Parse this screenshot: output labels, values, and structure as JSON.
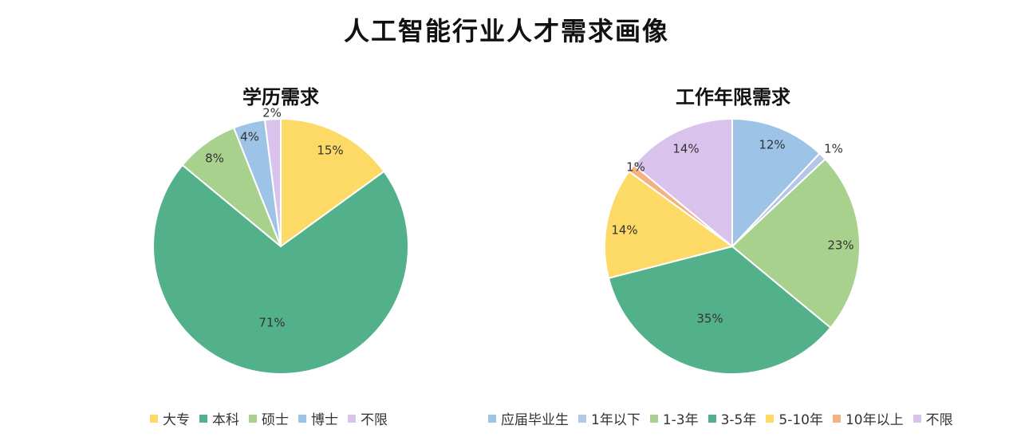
{
  "title": "人工智能行业人才需求画像",
  "chart_data": [
    {
      "type": "pie",
      "title": "学历需求",
      "slices": [
        {
          "label": "大专",
          "value": 15,
          "display": "15%",
          "color": "#FDD966"
        },
        {
          "label": "本科",
          "value": 71,
          "display": "71%",
          "color": "#52B18B"
        },
        {
          "label": "硕士",
          "value": 8,
          "display": "8%",
          "color": "#A9D18E"
        },
        {
          "label": "博士",
          "value": 4,
          "display": "4%",
          "color": "#9DC3E6"
        },
        {
          "label": "不限",
          "value": 2,
          "display": "2%",
          "color": "#D9C3EC"
        }
      ],
      "legend_position": "bottom"
    },
    {
      "type": "pie",
      "title": "工作年限需求",
      "slices": [
        {
          "label": "应届毕业生",
          "value": 12,
          "display": "12%",
          "color": "#9DC3E6"
        },
        {
          "label": "1年以下",
          "value": 1,
          "display": "1%",
          "color": "#B4C7E7"
        },
        {
          "label": "1-3年",
          "value": 23,
          "display": "23%",
          "color": "#A9D18E"
        },
        {
          "label": "3-5年",
          "value": 35,
          "display": "35%",
          "color": "#52B18B"
        },
        {
          "label": "5-10年",
          "value": 14,
          "display": "14%",
          "color": "#FDD966"
        },
        {
          "label": "10年以上",
          "value": 1,
          "display": "1%",
          "color": "#F4B183"
        },
        {
          "label": "不限",
          "value": 14,
          "display": "14%",
          "color": "#D9C3EC"
        }
      ],
      "legend_position": "bottom"
    }
  ]
}
